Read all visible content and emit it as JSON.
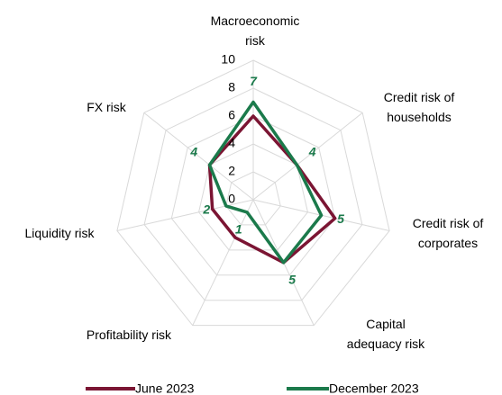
{
  "chart_data": {
    "type": "radar",
    "categories": [
      "Macroeconomic risk",
      "Credit risk of households",
      "Credit risk of corporates",
      "Capital adequacy risk",
      "Profitability risk",
      "Liquidity risk",
      "FX risk"
    ],
    "series": [
      {
        "name": "June 2023",
        "color": "#7b1533",
        "values": [
          6,
          4,
          6,
          5,
          3,
          3,
          4
        ],
        "show_labels": false
      },
      {
        "name": "December 2023",
        "color": "#1b7a4b",
        "values": [
          7,
          4,
          5,
          5,
          1,
          2,
          4
        ],
        "show_labels": true
      }
    ],
    "rlim": [
      0,
      10
    ],
    "rticks": [
      0,
      2,
      4,
      6,
      8,
      10
    ],
    "grid": true,
    "legend": "bottom"
  }
}
